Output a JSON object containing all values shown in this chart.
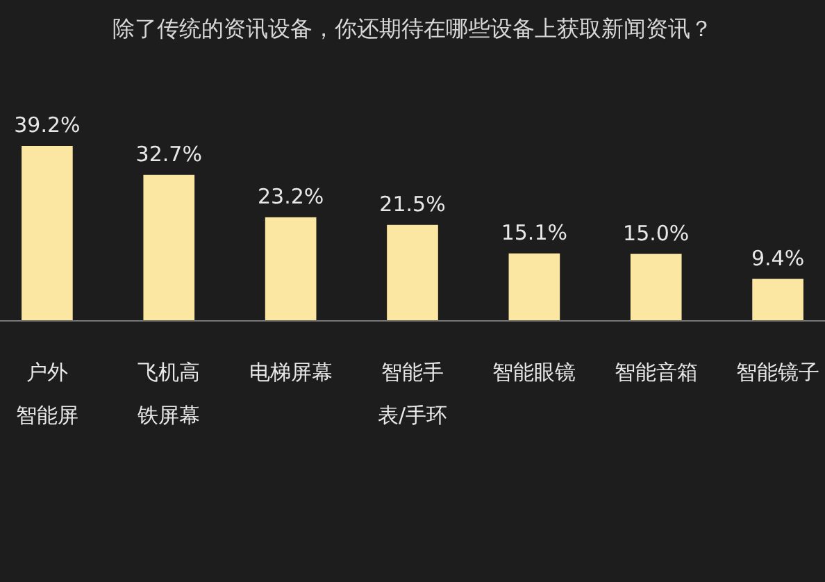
{
  "chart_data": {
    "type": "bar",
    "title": "除了传统的资讯设备，你还期待在哪些设备上获取新闻资讯？",
    "categories": [
      "户外智能屏",
      "飞机高铁屏幕",
      "电梯屏幕",
      "智能手表/手环",
      "智能眼镜",
      "智能音箱",
      "智能镜子"
    ],
    "values": [
      39.2,
      32.7,
      23.2,
      21.5,
      15.1,
      15.0,
      9.4
    ],
    "value_labels": [
      "39.2%",
      "32.7%",
      "23.2%",
      "21.5%",
      "15.1%",
      "15.0%",
      "9.4%"
    ],
    "color": "#fbe7a1"
  }
}
